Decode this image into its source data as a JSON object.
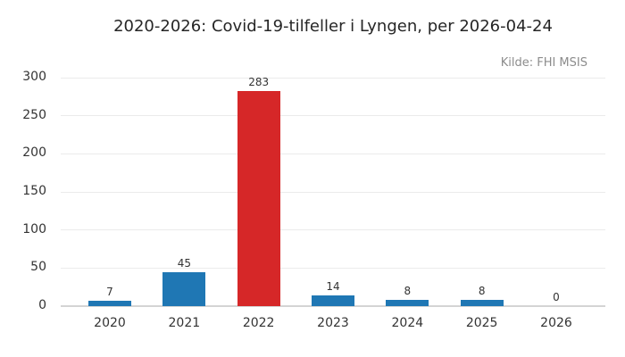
{
  "chart_data": {
    "type": "bar",
    "title": "2020-2026: Covid-19-tilfeller i Lyngen, per 2026-04-24",
    "source_note": "Kilde: FHI MSIS",
    "categories": [
      "2020",
      "2021",
      "2022",
      "2023",
      "2024",
      "2025",
      "2026"
    ],
    "values": [
      7,
      45,
      283,
      14,
      8,
      8,
      0
    ],
    "value_labels": [
      "7",
      "45",
      "283",
      "14",
      "8",
      "8",
      "0"
    ],
    "bar_colors": [
      "#1f77b4",
      "#1f77b4",
      "#d62728",
      "#1f77b4",
      "#1f77b4",
      "#1f77b4",
      "#1f77b4"
    ],
    "yticks": [
      0,
      50,
      100,
      150,
      200,
      250,
      300
    ],
    "ylim": [
      0,
      300
    ],
    "xlabel": "",
    "ylabel": "",
    "grid": "horizontal",
    "legend": "none",
    "colors": {
      "background": "#ffffff",
      "grid": "#ebebeb",
      "baseline": "#d4d4d4",
      "tick_label": "#333333",
      "value_label": "#333333",
      "title": "#262626",
      "source": "#8c8c8c",
      "bar_default": "#1f77b4",
      "bar_highlight": "#d62728"
    }
  }
}
